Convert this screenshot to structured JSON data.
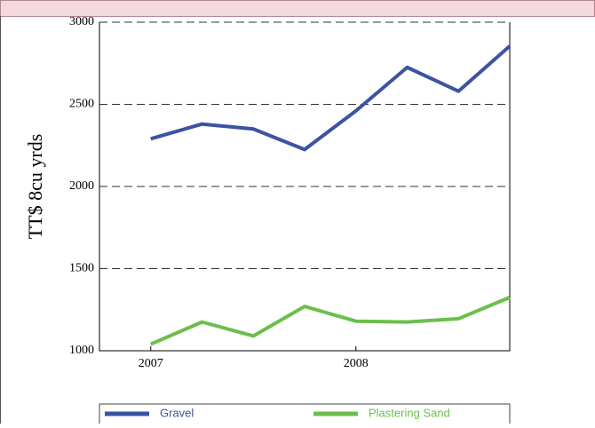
{
  "chart_data": {
    "type": "line",
    "y_label": "TT$ 8cu yrds",
    "x": [
      2007,
      2007.25,
      2007.5,
      2007.75,
      2008,
      2008.25,
      2008.5,
      2008.75
    ],
    "xlim": [
      2006.75,
      2008.75
    ],
    "xticks": [
      2007,
      2008
    ],
    "ylim": [
      1000,
      3000
    ],
    "yticks": [
      1000,
      1500,
      2000,
      2500,
      3000
    ],
    "grid": true,
    "series": [
      {
        "name": "Gravel",
        "color": "#3a53a4",
        "values": [
          2290,
          2380,
          2350,
          2225,
          2460,
          2725,
          2580,
          2855
        ]
      },
      {
        "name": "Plastering Sand",
        "color": "#6abf4b",
        "values": [
          1040,
          1175,
          1090,
          1270,
          1180,
          1175,
          1195,
          1325
        ]
      }
    ]
  }
}
